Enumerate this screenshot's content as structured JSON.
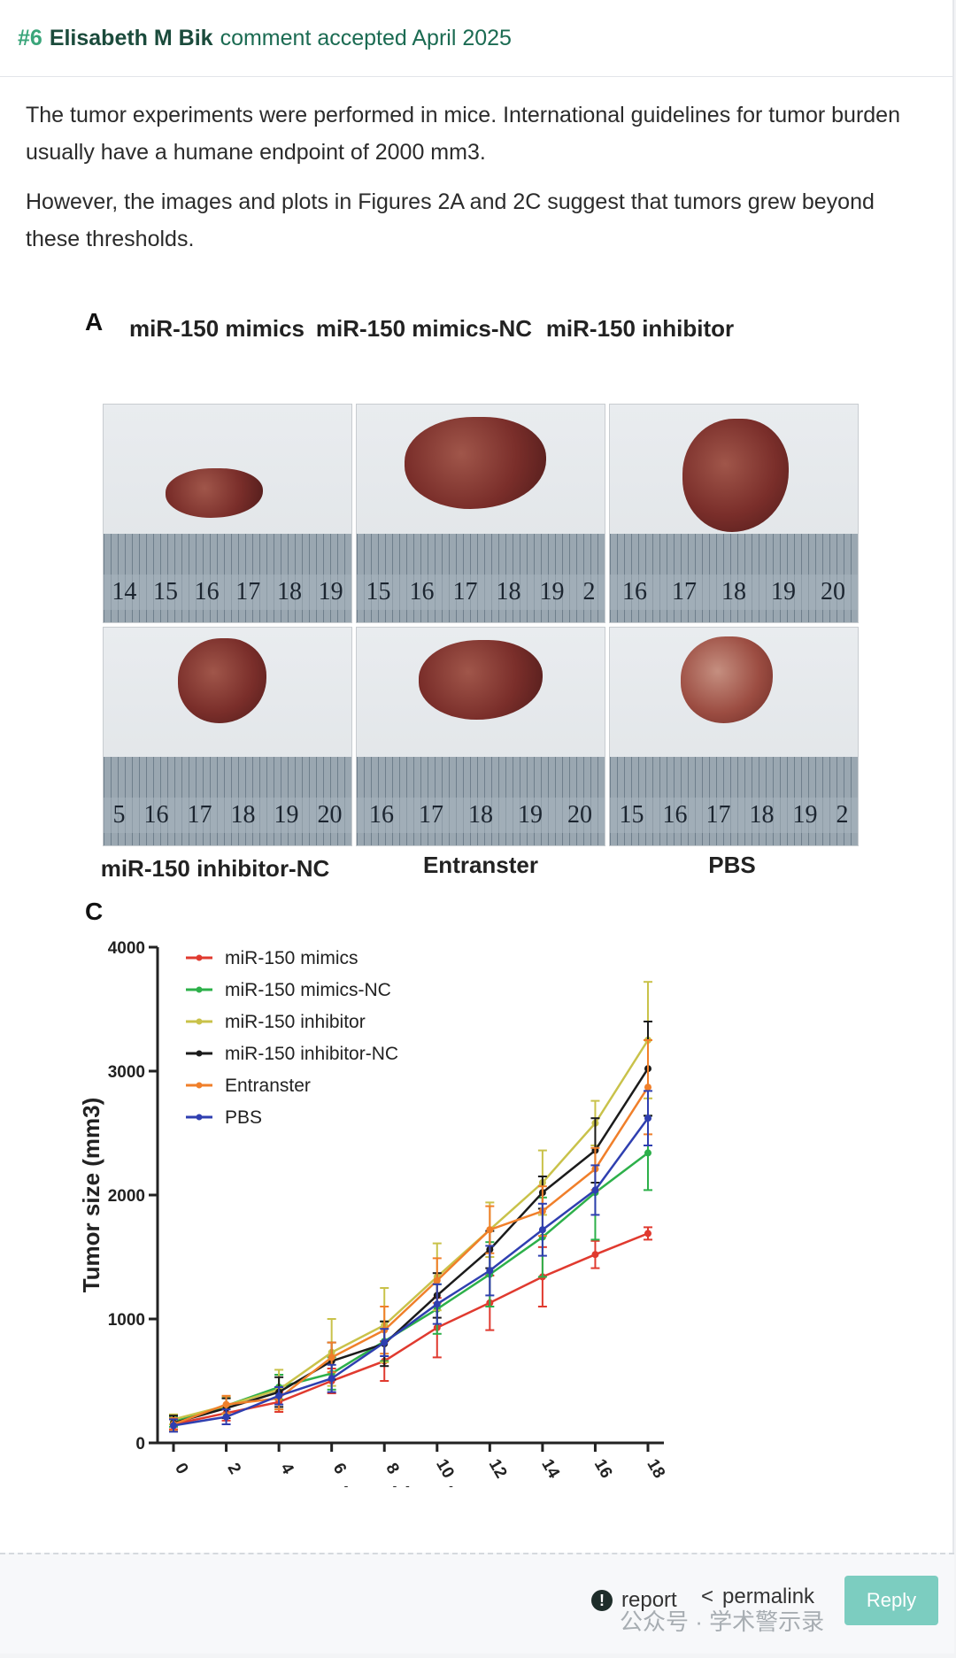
{
  "header": {
    "number": "#6",
    "author": "Elisabeth M Bik",
    "status": "comment accepted April 2025"
  },
  "comment": {
    "paragraphs": [
      "The tumor experiments were performed in mice. International guidelines for tumor burden usually have a humane endpoint of 2000 mm3.",
      "However, the images and plots in Figures 2A and 2C suggest that tumors grew beyond these thresholds."
    ]
  },
  "figure": {
    "panel_a_letter": "A",
    "panel_c_letter": "C",
    "top_labels": [
      "miR-150 mimics",
      "miR-150 mimics-NC",
      "miR-150 inhibitor"
    ],
    "bottom_labels": [
      "miR-150 inhibitor-NC",
      "Entranster",
      "PBS"
    ],
    "ruler_numbers": [
      [
        "14",
        "15",
        "16",
        "17",
        "18",
        "19"
      ],
      [
        "15",
        "16",
        "17",
        "18",
        "19",
        "2"
      ],
      [
        "16",
        "17",
        "18",
        "19",
        "20"
      ],
      [
        "5",
        "16",
        "17",
        "18",
        "19",
        "20"
      ],
      [
        "16",
        "17",
        "18",
        "19",
        "20"
      ],
      [
        "15",
        "16",
        "17",
        "18",
        "19",
        "2"
      ]
    ]
  },
  "chart_data": {
    "type": "line",
    "xlabel": "Time (days)",
    "ylabel": "Tumor size (mm3)",
    "x": [
      0,
      2,
      4,
      6,
      8,
      10,
      12,
      14,
      16,
      18
    ],
    "xticks": [
      "0",
      "2",
      "4",
      "6",
      "8",
      "10",
      "12",
      "14",
      "16",
      "18"
    ],
    "yticks": [
      "0",
      "1000",
      "2000",
      "3000",
      "4000"
    ],
    "ylim": [
      0,
      4000
    ],
    "legend_position": "top-left",
    "series": [
      {
        "name": "miR-150 mimics",
        "color": "#e03a2f",
        "values": [
          150,
          240,
          330,
          500,
          660,
          930,
          1130,
          1340,
          1520,
          1690
        ],
        "errors": [
          40,
          60,
          80,
          100,
          160,
          240,
          220,
          240,
          110,
          50
        ]
      },
      {
        "name": "miR-150 mimics-NC",
        "color": "#2db04a",
        "values": [
          170,
          300,
          450,
          560,
          820,
          1080,
          1360,
          1660,
          2020,
          2340
        ],
        "errors": [
          40,
          60,
          100,
          130,
          160,
          200,
          260,
          320,
          380,
          300
        ]
      },
      {
        "name": "miR-150 inhibitor",
        "color": "#c9c24a",
        "values": [
          190,
          300,
          430,
          730,
          950,
          1340,
          1720,
          2100,
          2580,
          3250
        ],
        "errors": [
          40,
          70,
          160,
          270,
          300,
          270,
          220,
          260,
          180,
          470
        ]
      },
      {
        "name": "miR-150 inhibitor-NC",
        "color": "#1b1b1b",
        "values": [
          160,
          280,
          410,
          660,
          800,
          1190,
          1560,
          2020,
          2360,
          3020
        ],
        "errors": [
          60,
          80,
          120,
          150,
          180,
          180,
          150,
          130,
          260,
          380
        ]
      },
      {
        "name": "Entranster",
        "color": "#f07f2a",
        "values": [
          150,
          310,
          360,
          690,
          910,
          1310,
          1720,
          1870,
          2210,
          2870
        ],
        "errors": [
          50,
          70,
          90,
          120,
          190,
          180,
          190,
          200,
          170,
          380
        ]
      },
      {
        "name": "PBS",
        "color": "#2f3fb0",
        "values": [
          140,
          210,
          380,
          520,
          810,
          1120,
          1390,
          1720,
          2040,
          2620
        ],
        "errors": [
          50,
          60,
          70,
          110,
          110,
          160,
          200,
          210,
          200,
          220
        ]
      }
    ]
  },
  "footer": {
    "report_label": "report",
    "permalink_label": "permalink",
    "reply_label": "Reply",
    "watermark": "公众号 · 学术警示录"
  }
}
